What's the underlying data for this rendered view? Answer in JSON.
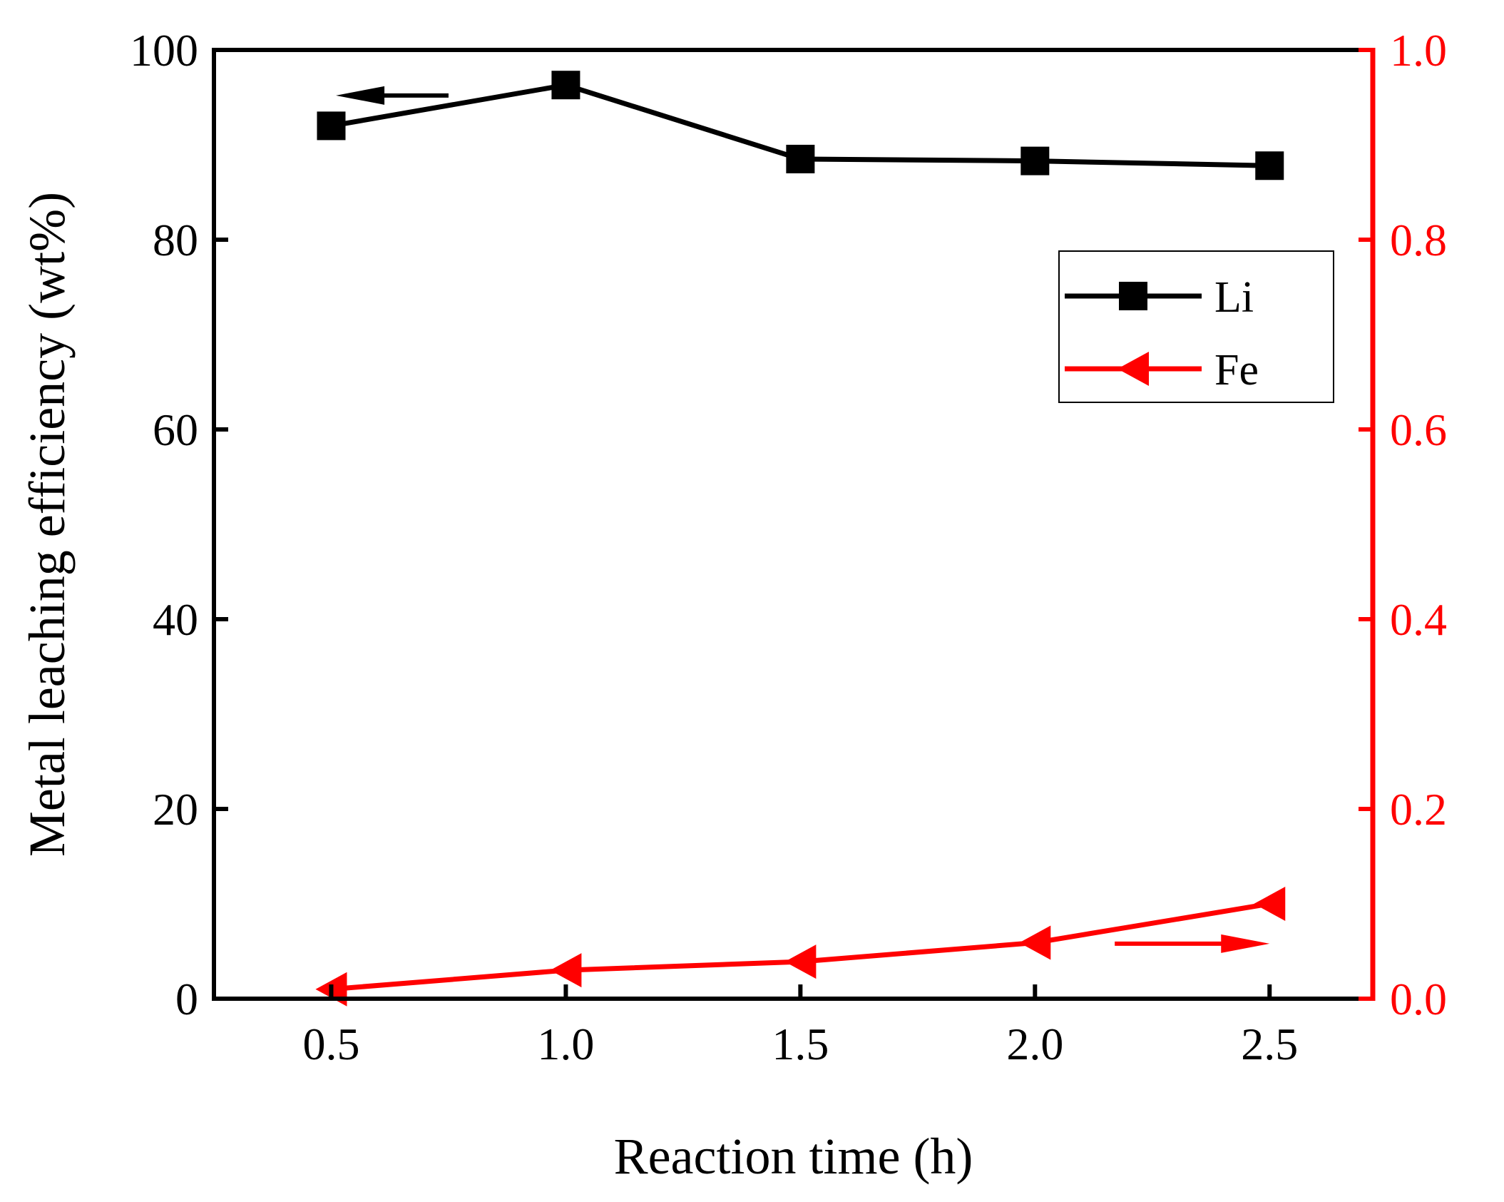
{
  "colors": {
    "li": "#000000",
    "fe": "#ff0000",
    "background": "#ffffff"
  },
  "chart_data": {
    "type": "line",
    "title": "",
    "xlabel": "Reaction time (h)",
    "ylabel": "Metal leaching efficiency (wt%)",
    "y2label": "",
    "xlim": [
      0.25,
      2.72
    ],
    "ylim": [
      0,
      100
    ],
    "y2lim": [
      0.0,
      1.0
    ],
    "x_ticks": [
      0.5,
      1.0,
      1.5,
      2.0,
      2.5
    ],
    "x_tick_labels": [
      "0.5",
      "1.0",
      "1.5",
      "2.0",
      "2.5"
    ],
    "y_ticks": [
      0,
      20,
      40,
      60,
      80,
      100
    ],
    "y_tick_labels": [
      "0",
      "20",
      "40",
      "60",
      "80",
      "100"
    ],
    "y2_ticks": [
      0.0,
      0.2,
      0.4,
      0.6,
      0.8,
      1.0
    ],
    "y2_tick_labels": [
      "0.0",
      "0.2",
      "0.4",
      "0.6",
      "0.8",
      "1.0"
    ],
    "grid": false,
    "legend_position": "top-right",
    "series": [
      {
        "name": "Li",
        "axis": "left",
        "marker": "square",
        "color": "#000000",
        "x": [
          0.5,
          1.0,
          1.5,
          2.0,
          2.5
        ],
        "y": [
          92.0,
          96.3,
          88.5,
          88.3,
          87.8
        ]
      },
      {
        "name": "Fe",
        "axis": "right",
        "marker": "triangle-left",
        "color": "#ff0000",
        "x": [
          0.5,
          1.0,
          1.5,
          2.0,
          2.5
        ],
        "y": [
          0.01,
          0.03,
          0.039,
          0.059,
          0.1
        ]
      }
    ],
    "annotations": [
      {
        "type": "arrow",
        "direction": "left",
        "points_to": "left-axis",
        "series": "Li",
        "at_x": [
          0.51,
          0.75
        ],
        "at_y": 95.2
      },
      {
        "type": "arrow",
        "direction": "right",
        "points_to": "right-axis",
        "series": "Fe",
        "at_x": [
          2.17,
          2.5
        ],
        "at_y": 0.058
      }
    ]
  }
}
